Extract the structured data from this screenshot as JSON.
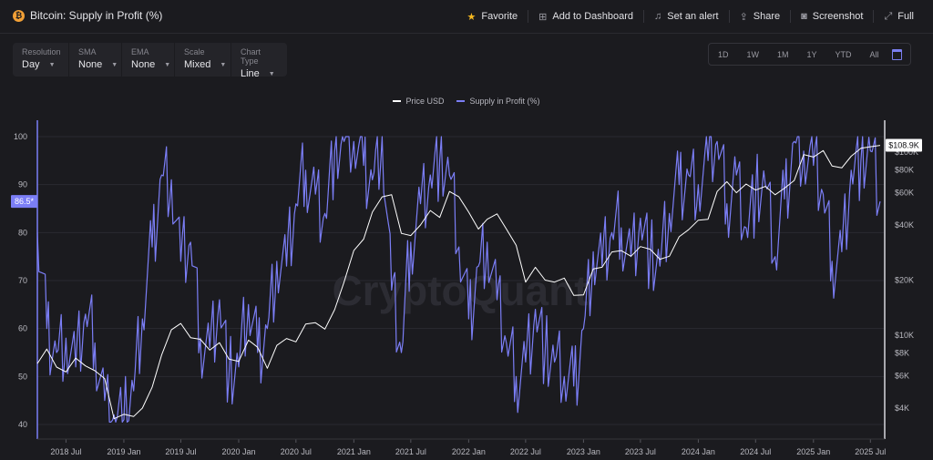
{
  "header": {
    "title": "Bitcoin: Supply in Profit (%)",
    "coin_symbol": "₿",
    "actions": [
      {
        "label": "Favorite",
        "icon": "star-icon"
      },
      {
        "label": "Add to Dashboard",
        "icon": "dashboard-icon"
      },
      {
        "label": "Set an alert",
        "icon": "bell-icon"
      },
      {
        "label": "Share",
        "icon": "share-icon"
      },
      {
        "label": "Screenshot",
        "icon": "camera-icon"
      },
      {
        "label": "Full",
        "icon": "fullscreen-icon"
      }
    ]
  },
  "controls": [
    {
      "label": "Resolution",
      "value": "Day"
    },
    {
      "label": "SMA",
      "value": "None"
    },
    {
      "label": "EMA",
      "value": "None"
    },
    {
      "label": "Scale",
      "value": "Mixed"
    },
    {
      "label": "Chart Type",
      "value": "Line"
    }
  ],
  "ranges": [
    "1D",
    "1W",
    "1M",
    "1Y",
    "YTD",
    "All"
  ],
  "watermark": "CryptoQuant",
  "colors": {
    "supply": "#7b7ef6",
    "price": "#ffffff",
    "background": "#1b1b1f",
    "grid": "#2a2a31"
  },
  "chart_data": {
    "type": "line",
    "legend": [
      "Price USD",
      "Supply in Profit (%)"
    ],
    "x_ticks": [
      "2018 Jul",
      "2019 Jan",
      "2019 Jul",
      "2020 Jan",
      "2020 Jul",
      "2021 Jan",
      "2021 Jul",
      "2022 Jan",
      "2022 Jul",
      "2023 Jan",
      "2023 Jul",
      "2024 Jan",
      "2024 Jul",
      "2025 Jan",
      "2025 Jul"
    ],
    "y_left": {
      "ticks": [
        40,
        50,
        60,
        70,
        80,
        90,
        100
      ],
      "range": [
        38,
        103
      ]
    },
    "y_right": {
      "scale": "log",
      "ticks": [
        "$4K",
        "$6K",
        "$8K",
        "$10K",
        "$20K",
        "$40K",
        "$60K",
        "$80K",
        "$100K"
      ],
      "tick_values": [
        4000,
        6000,
        8000,
        10000,
        20000,
        40000,
        60000,
        80000,
        100000
      ]
    },
    "current_supply_label": "86.5*",
    "current_supply_value": 86.5,
    "current_price_label": "$108.9K",
    "current_price_value": 108900,
    "x": [
      "2018-04-01",
      "2018-05-01",
      "2018-06-01",
      "2018-07-01",
      "2018-08-01",
      "2018-09-01",
      "2018-10-01",
      "2018-11-01",
      "2018-12-01",
      "2019-01-01",
      "2019-02-01",
      "2019-03-01",
      "2019-04-01",
      "2019-05-01",
      "2019-06-01",
      "2019-07-01",
      "2019-08-01",
      "2019-09-01",
      "2019-10-01",
      "2019-11-01",
      "2019-12-01",
      "2020-01-01",
      "2020-02-01",
      "2020-03-01",
      "2020-04-01",
      "2020-05-01",
      "2020-06-01",
      "2020-07-01",
      "2020-08-01",
      "2020-09-01",
      "2020-10-01",
      "2020-11-01",
      "2020-12-01",
      "2021-01-01",
      "2021-02-01",
      "2021-03-01",
      "2021-04-01",
      "2021-05-01",
      "2021-06-01",
      "2021-07-01",
      "2021-08-01",
      "2021-09-01",
      "2021-10-01",
      "2021-11-01",
      "2021-12-01",
      "2022-01-01",
      "2022-02-01",
      "2022-03-01",
      "2022-04-01",
      "2022-05-01",
      "2022-06-01",
      "2022-07-01",
      "2022-08-01",
      "2022-09-01",
      "2022-10-01",
      "2022-11-01",
      "2022-12-01",
      "2023-01-01",
      "2023-02-01",
      "2023-03-01",
      "2023-04-01",
      "2023-05-01",
      "2023-06-01",
      "2023-07-01",
      "2023-08-01",
      "2023-09-01",
      "2023-10-01",
      "2023-11-01",
      "2023-12-01",
      "2024-01-01",
      "2024-02-01",
      "2024-03-01",
      "2024-04-01",
      "2024-05-01",
      "2024-06-01",
      "2024-07-01",
      "2024-08-01",
      "2024-09-01",
      "2024-10-01",
      "2024-11-01",
      "2024-12-01",
      "2025-01-01",
      "2025-02-01",
      "2025-03-01",
      "2025-04-01",
      "2025-05-01",
      "2025-06-01",
      "2025-07-01",
      "2025-08-01"
    ],
    "series": [
      {
        "name": "Supply in Profit (%)",
        "axis": "left",
        "color": "#7b7ef6",
        "values": [
          80,
          60,
          55,
          58,
          52,
          63,
          57,
          45,
          42,
          41,
          47,
          62,
          77,
          92,
          91,
          74,
          78,
          58,
          56,
          66,
          50,
          52,
          65,
          55,
          60,
          74,
          73,
          86,
          93,
          88,
          84,
          97,
          99,
          99,
          94,
          91,
          100,
          68,
          55,
          78,
          86,
          92,
          95,
          92,
          77,
          62,
          73,
          78,
          66,
          57,
          50,
          53,
          64,
          55,
          53,
          50,
          48,
          60,
          76,
          73,
          80,
          81,
          75,
          83,
          75,
          73,
          84,
          90,
          92,
          90,
          95,
          99,
          86,
          92,
          81,
          88,
          90,
          75,
          87,
          99,
          97,
          94,
          88,
          74,
          76,
          93,
          95,
          97,
          86.5
        ]
      },
      {
        "name": "Price USD",
        "axis": "right",
        "color": "#ffffff",
        "values": [
          7000,
          8400,
          6700,
          6300,
          7500,
          6800,
          6400,
          5800,
          3500,
          3700,
          3600,
          4000,
          5200,
          7800,
          10700,
          11600,
          9700,
          9500,
          8300,
          9100,
          7400,
          7200,
          9400,
          8600,
          6600,
          8800,
          9600,
          9200,
          11500,
          11700,
          10800,
          13800,
          19500,
          29000,
          33500,
          47000,
          57000,
          58500,
          36000,
          35000,
          40000,
          48000,
          44000,
          61000,
          57000,
          47000,
          38000,
          43000,
          46000,
          38000,
          31000,
          19500,
          23500,
          20000,
          19500,
          20500,
          16500,
          16600,
          23000,
          23500,
          28500,
          29000,
          27000,
          30500,
          29500,
          26000,
          27000,
          34500,
          37700,
          42500,
          43000,
          61000,
          69000,
          60000,
          67000,
          62000,
          65000,
          58500,
          63500,
          70000,
          97000,
          94000,
          102000,
          84000,
          82000,
          95000,
          105000,
          107000,
          108900
        ]
      }
    ]
  }
}
